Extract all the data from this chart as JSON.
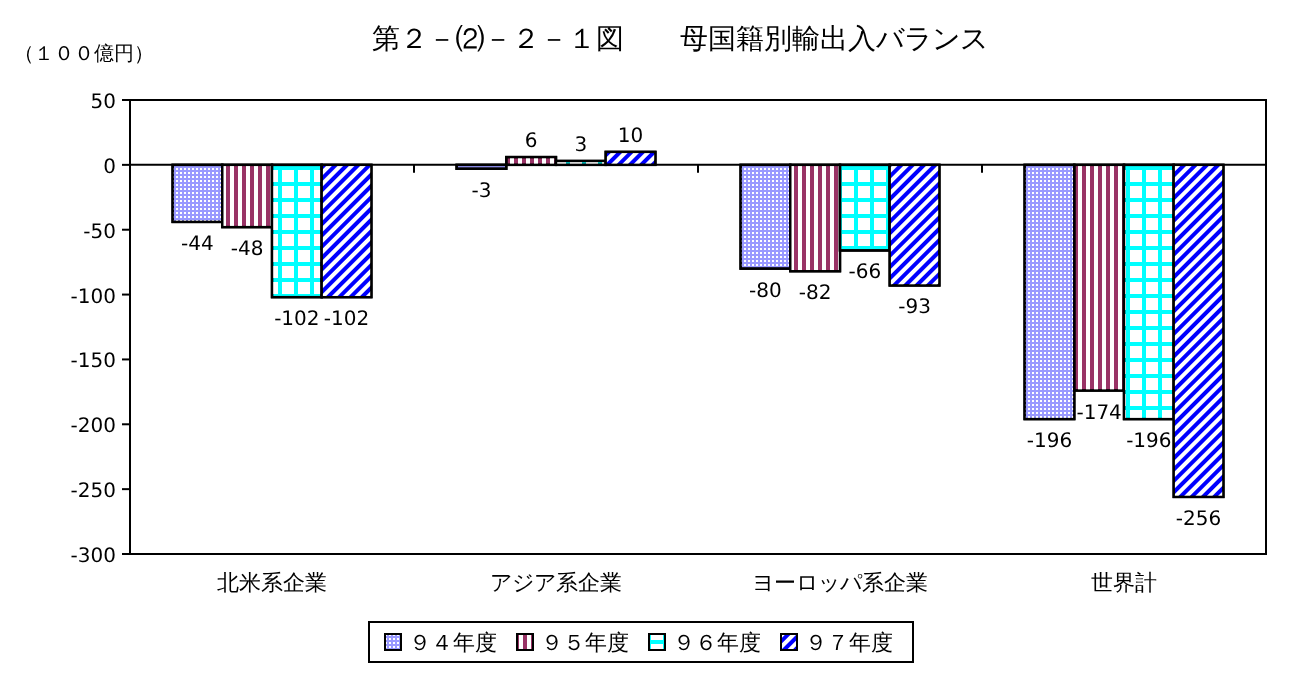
{
  "chart_data": {
    "type": "bar",
    "title": "第２－⑵－２－１図　　母国籍別輸出入バランス",
    "ylabel": "（１００億円）",
    "categories": [
      "北米系企業",
      "アジア系企業",
      "ヨーロッパ系企業",
      "世界計"
    ],
    "series": [
      {
        "name": "９４年度",
        "color": "#9999ff",
        "values": [
          -44,
          -3,
          -80,
          -196
        ]
      },
      {
        "name": "９５年度",
        "color": "#993366",
        "values": [
          -48,
          6,
          -82,
          -174
        ]
      },
      {
        "name": "９６年度",
        "color": "#00ffff",
        "values": [
          -102,
          3,
          -66,
          -196
        ]
      },
      {
        "name": "９７年度",
        "color": "#0000ff",
        "values": [
          -102,
          10,
          -93,
          -256
        ]
      }
    ],
    "ylim": [
      -300,
      50
    ],
    "yticks": [
      -300,
      -250,
      -200,
      -150,
      -100,
      -50,
      0,
      50
    ],
    "data_labels": true,
    "legend": "bottom"
  }
}
